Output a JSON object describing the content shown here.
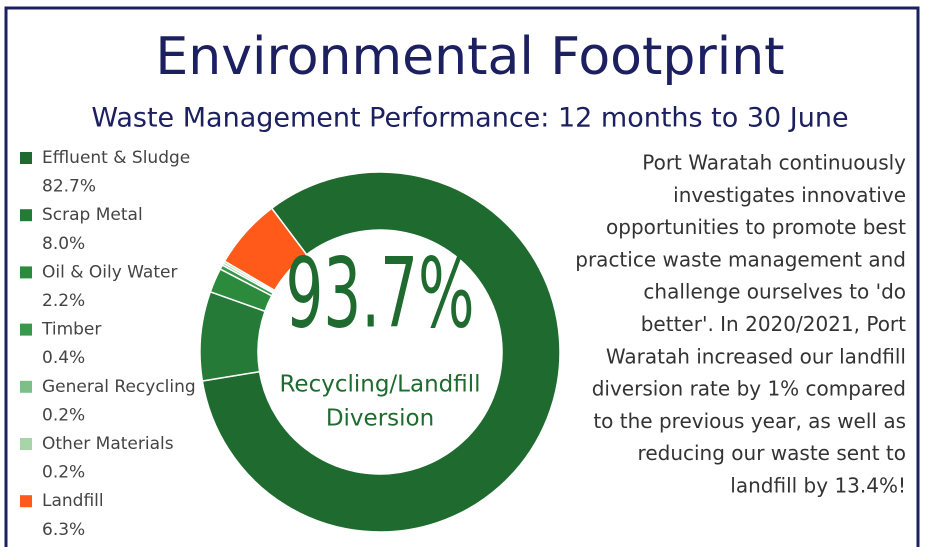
{
  "chart_data": {
    "type": "donut",
    "title": "Environmental Footprint",
    "subtitle": "Waste Management Performance: 12 months to 30 June",
    "categories": [
      "Effluent & Sludge",
      "Scrap Metal",
      "Oil & Oily Water",
      "Timber",
      "General Recycling",
      "Other Materials",
      "Landfill"
    ],
    "values": [
      82.7,
      8.0,
      2.2,
      0.4,
      0.2,
      0.2,
      6.3
    ],
    "value_labels": [
      "82.7%",
      "8.0%",
      "2.2%",
      "0.4%",
      "0.2%",
      "0.2%",
      "6.3%"
    ],
    "colors": [
      "#1f6b2f",
      "#267a37",
      "#2c8a3d",
      "#38984b",
      "#7dbf86",
      "#a9d4aa",
      "#ff5a1a"
    ],
    "center_value": "93.7%",
    "center_label": [
      "Recycling/Landfill",
      "Diversion"
    ],
    "text": [
      "Port Waratah continuously",
      "investigates innovative",
      "opportunities to promote best",
      "practice waste management and",
      "challenge ourselves to 'do",
      "better'. In 2020/2021, Port",
      "Waratah increased our landfill",
      "diversion rate by 1% compared",
      "to the previous year, as well as",
      "reducing our waste sent to",
      "landfill by 13.4%!"
    ]
  }
}
